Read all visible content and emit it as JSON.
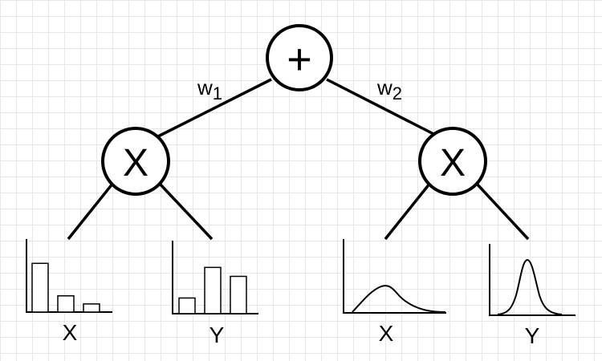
{
  "nodes": {
    "sum": {
      "op": "+"
    },
    "product_left": {
      "op": "X"
    },
    "product_right": {
      "op": "X"
    }
  },
  "weights": {
    "w1": {
      "base": "w",
      "sub": "1"
    },
    "w2": {
      "base": "w",
      "sub": "2"
    }
  },
  "leaves": [
    {
      "label": "X",
      "kind": "histogram",
      "values": [
        0.66,
        0.22,
        0.11
      ]
    },
    {
      "label": "Y",
      "kind": "histogram",
      "values": [
        0.21,
        0.62,
        0.5
      ]
    },
    {
      "label": "X",
      "kind": "density",
      "shape": "right-skewed",
      "peak": 0.37
    },
    {
      "label": "Y",
      "kind": "density",
      "shape": "gaussian",
      "peak": 0.72
    }
  ]
}
